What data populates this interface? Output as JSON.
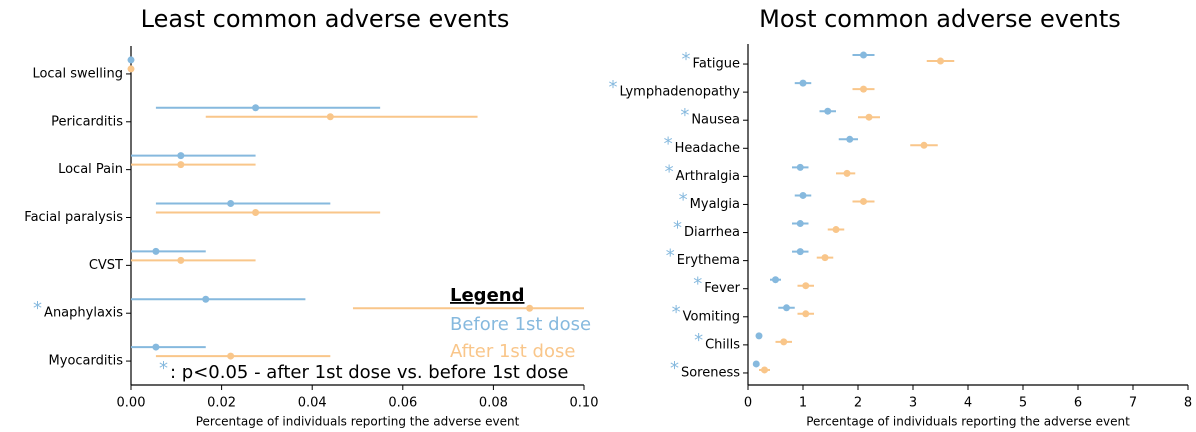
{
  "chart_data": [
    {
      "type": "dot_errorbar",
      "title": "Least common adverse events",
      "x_label": "Percentage of individuals reporting the adverse event",
      "categories": [
        "Local swelling",
        "Pericarditis",
        "Local Pain",
        "Facial paralysis",
        "CVST",
        "Anaphylaxis",
        "Myocarditis"
      ],
      "significant": [
        false,
        false,
        false,
        false,
        false,
        true,
        false
      ],
      "significance_marker": "*",
      "series": [
        {
          "name": "Before 1st dose",
          "color": "#86b9de",
          "values": [
            0,
            0.0275,
            0.011,
            0.022,
            0.0055,
            0.0165,
            0.0055
          ],
          "lower": [
            0,
            0.0055,
            0,
            0.0055,
            0,
            0,
            0
          ],
          "upper": [
            0,
            0.055,
            0.0275,
            0.044,
            0.0165,
            0.0385,
            0.0165
          ]
        },
        {
          "name": "After 1st dose",
          "color": "#f9c68a",
          "values": [
            0,
            0.044,
            0.011,
            0.0275,
            0.011,
            0.088,
            0.022
          ],
          "lower": [
            0,
            0.0165,
            0,
            0.0055,
            0,
            0.049,
            0.0055
          ],
          "upper": [
            0,
            0.0765,
            0.0275,
            0.055,
            0.0275,
            0.1,
            0.044
          ]
        }
      ],
      "xlim": [
        0,
        0.1
      ],
      "xticks": [
        {
          "value": 0,
          "label": "0.00"
        },
        {
          "value": 0.02,
          "label": "0.02"
        },
        {
          "value": 0.04,
          "label": "0.04"
        },
        {
          "value": 0.06,
          "label": "0.06"
        },
        {
          "value": 0.08,
          "label": "0.08"
        },
        {
          "value": 0.1,
          "label": "0.10"
        }
      ],
      "legend": {
        "title": "Legend",
        "note": ": p<0.05 - after 1st dose vs. before 1st dose"
      }
    },
    {
      "type": "dot_errorbar",
      "title": "Most common adverse events",
      "x_label": "Percentage of individuals reporting the adverse event",
      "categories": [
        "Fatigue",
        "Lymphadenopathy",
        "Nausea",
        "Headache",
        "Arthralgia",
        "Myalgia",
        "Diarrhea",
        "Erythema",
        "Fever",
        "Vomiting",
        "Chills",
        "Soreness"
      ],
      "significant": [
        true,
        true,
        true,
        true,
        true,
        true,
        true,
        true,
        true,
        true,
        true,
        true
      ],
      "significance_marker": "*",
      "series": [
        {
          "color": "#86b9de",
          "values": [
            2.1,
            1.0,
            1.45,
            1.85,
            0.95,
            1.0,
            0.95,
            0.95,
            0.5,
            0.7,
            0.2,
            0.15
          ],
          "lower": [
            1.9,
            0.85,
            1.3,
            1.65,
            0.8,
            0.85,
            0.8,
            0.8,
            0.4,
            0.55,
            0.15,
            0.1
          ],
          "upper": [
            2.3,
            1.15,
            1.6,
            2.0,
            1.1,
            1.15,
            1.1,
            1.1,
            0.6,
            0.85,
            0.25,
            0.2
          ]
        },
        {
          "color": "#f9c68a",
          "values": [
            3.5,
            2.1,
            2.2,
            3.2,
            1.8,
            2.1,
            1.6,
            1.4,
            1.05,
            1.05,
            0.65,
            0.3
          ],
          "lower": [
            3.25,
            1.9,
            2.0,
            2.95,
            1.6,
            1.9,
            1.45,
            1.25,
            0.9,
            0.9,
            0.5,
            0.2
          ],
          "upper": [
            3.75,
            2.3,
            2.4,
            3.45,
            1.95,
            2.3,
            1.75,
            1.55,
            1.2,
            1.2,
            0.8,
            0.4
          ]
        }
      ],
      "xlim": [
        0,
        8
      ],
      "xticks": [
        0,
        1,
        2,
        3,
        4,
        5,
        6,
        7,
        8
      ]
    }
  ]
}
